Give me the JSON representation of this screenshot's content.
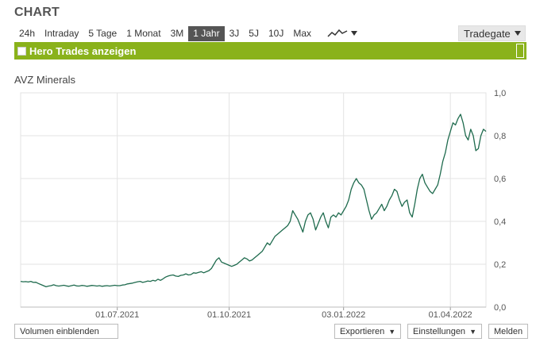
{
  "header": {
    "title": "CHART"
  },
  "ranges": {
    "items": [
      {
        "label": "24h"
      },
      {
        "label": "Intraday"
      },
      {
        "label": "5 Tage"
      },
      {
        "label": "1 Monat"
      },
      {
        "label": "3M"
      },
      {
        "label": "1 Jahr"
      },
      {
        "label": "3J"
      },
      {
        "label": "5J"
      },
      {
        "label": "10J"
      },
      {
        "label": "Max"
      }
    ],
    "active": "1 Jahr"
  },
  "chart_type_icon": "line-chart-icon",
  "exchange": {
    "selected": "Tradegate"
  },
  "hero": {
    "label": "Hero Trades anzeigen",
    "checked": false
  },
  "instrument": "AVZ Minerals",
  "colors": {
    "line": "#1f6b4e",
    "accent_green": "#8ab21b",
    "active_tab": "#555555"
  },
  "chart_data": {
    "type": "line",
    "title": "",
    "series": [
      {
        "values": [
          0.12,
          0.118,
          0.119,
          0.117,
          0.12,
          0.115,
          0.116,
          0.11,
          0.105,
          0.1,
          0.095,
          0.098,
          0.1,
          0.104,
          0.1,
          0.098,
          0.1,
          0.102,
          0.099,
          0.097,
          0.1,
          0.103,
          0.099,
          0.098,
          0.101,
          0.1,
          0.097,
          0.099,
          0.101,
          0.1,
          0.098,
          0.1,
          0.097,
          0.099,
          0.1,
          0.098,
          0.1,
          0.102,
          0.1,
          0.1,
          0.103,
          0.104,
          0.108,
          0.11,
          0.112,
          0.115,
          0.118,
          0.12,
          0.115,
          0.118,
          0.122,
          0.12,
          0.125,
          0.122,
          0.13,
          0.125,
          0.132,
          0.14,
          0.145,
          0.148,
          0.15,
          0.145,
          0.143,
          0.148,
          0.15,
          0.155,
          0.15,
          0.152,
          0.16,
          0.158,
          0.162,
          0.165,
          0.16,
          0.165,
          0.17,
          0.18,
          0.2,
          0.22,
          0.23,
          0.21,
          0.205,
          0.2,
          0.195,
          0.19,
          0.195,
          0.2,
          0.21,
          0.22,
          0.23,
          0.225,
          0.215,
          0.22,
          0.23,
          0.24,
          0.25,
          0.26,
          0.28,
          0.3,
          0.29,
          0.31,
          0.33,
          0.34,
          0.35,
          0.36,
          0.37,
          0.38,
          0.4,
          0.45,
          0.43,
          0.41,
          0.38,
          0.35,
          0.4,
          0.43,
          0.44,
          0.41,
          0.36,
          0.39,
          0.42,
          0.44,
          0.4,
          0.37,
          0.42,
          0.43,
          0.42,
          0.44,
          0.43,
          0.45,
          0.47,
          0.5,
          0.55,
          0.58,
          0.6,
          0.58,
          0.57,
          0.55,
          0.5,
          0.45,
          0.41,
          0.43,
          0.44,
          0.46,
          0.48,
          0.45,
          0.47,
          0.5,
          0.52,
          0.55,
          0.54,
          0.5,
          0.47,
          0.49,
          0.5,
          0.44,
          0.42,
          0.48,
          0.55,
          0.6,
          0.62,
          0.58,
          0.56,
          0.54,
          0.53,
          0.55,
          0.57,
          0.62,
          0.68,
          0.72,
          0.78,
          0.82,
          0.86,
          0.85,
          0.88,
          0.9,
          0.86,
          0.8,
          0.78,
          0.83,
          0.8,
          0.73,
          0.74,
          0.8,
          0.83,
          0.82
        ]
      }
    ],
    "x_tick_labels": [
      "01.07.2021",
      "01.10.2021",
      "03.01.2022",
      "01.04.2022"
    ],
    "x_tick_index": [
      38,
      82,
      127,
      169
    ],
    "y_ticks": [
      "0,0",
      "0,2",
      "0,4",
      "0,6",
      "0,8",
      "1,0"
    ],
    "ylim": [
      0,
      1.0
    ],
    "grid": true
  },
  "footer": {
    "volume_label": "Volumen einblenden",
    "export_label": "Exportieren",
    "settings_label": "Einstellungen",
    "report_label": "Melden"
  }
}
